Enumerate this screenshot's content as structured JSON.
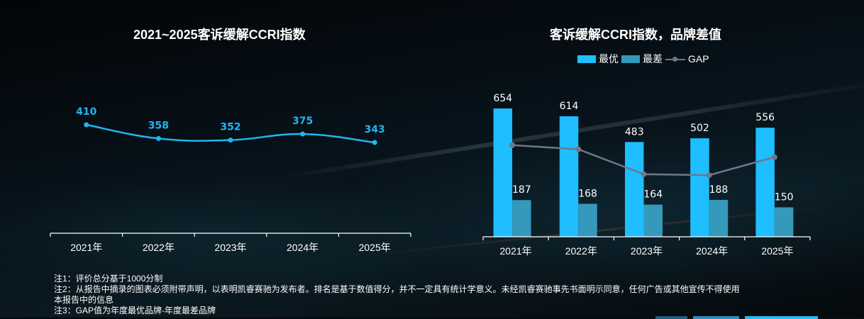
{
  "chart_data": [
    {
      "type": "line",
      "title": "2021~2025客诉缓解CCRI指数",
      "categories": [
        "2021年",
        "2022年",
        "2023年",
        "2024年",
        "2025年"
      ],
      "series": [
        {
          "name": "CCRI指数",
          "values": [
            410,
            358,
            352,
            375,
            343
          ],
          "color": "#1fb6f0"
        }
      ],
      "xlabel": "",
      "ylabel": "",
      "grid": false,
      "smooth": true
    },
    {
      "type": "bar",
      "title": "客诉缓解CCRI指数，品牌差值",
      "categories": [
        "2021年",
        "2022年",
        "2023年",
        "2024年",
        "2025年"
      ],
      "series": [
        {
          "name": "最优",
          "type": "bar",
          "values": [
            654,
            614,
            483,
            502,
            556
          ],
          "color": "#1ebeff"
        },
        {
          "name": "最差",
          "type": "bar",
          "values": [
            187,
            168,
            164,
            188,
            150
          ],
          "color": "#3499bb"
        },
        {
          "name": "GAP",
          "type": "line",
          "values": [
            467,
            446,
            319,
            314,
            406
          ],
          "color": "#6e7889"
        }
      ],
      "legend": "top-center",
      "xlabel": "",
      "ylabel": "",
      "grid": false,
      "ylim": [
        0,
        654
      ]
    }
  ],
  "notes": [
    "注1：评价总分基于1000分制",
    "注2：从报告中摘录的图表必须附带声明，以表明凯睿赛驰为发布者。排名是基于数值得分，并不一定具有统计学意义。未经凯睿赛驰事先书面明示同意，任何广告或其他宣传不得使用",
    "本报告中的信息",
    "注3：GAP值为年度最优品牌-年度最差品牌"
  ],
  "colors": {
    "bottom_bar_1": "#1d5f78",
    "bottom_bar_2": "#2b8fc0",
    "bottom_bar_3": "#1ebeff"
  }
}
